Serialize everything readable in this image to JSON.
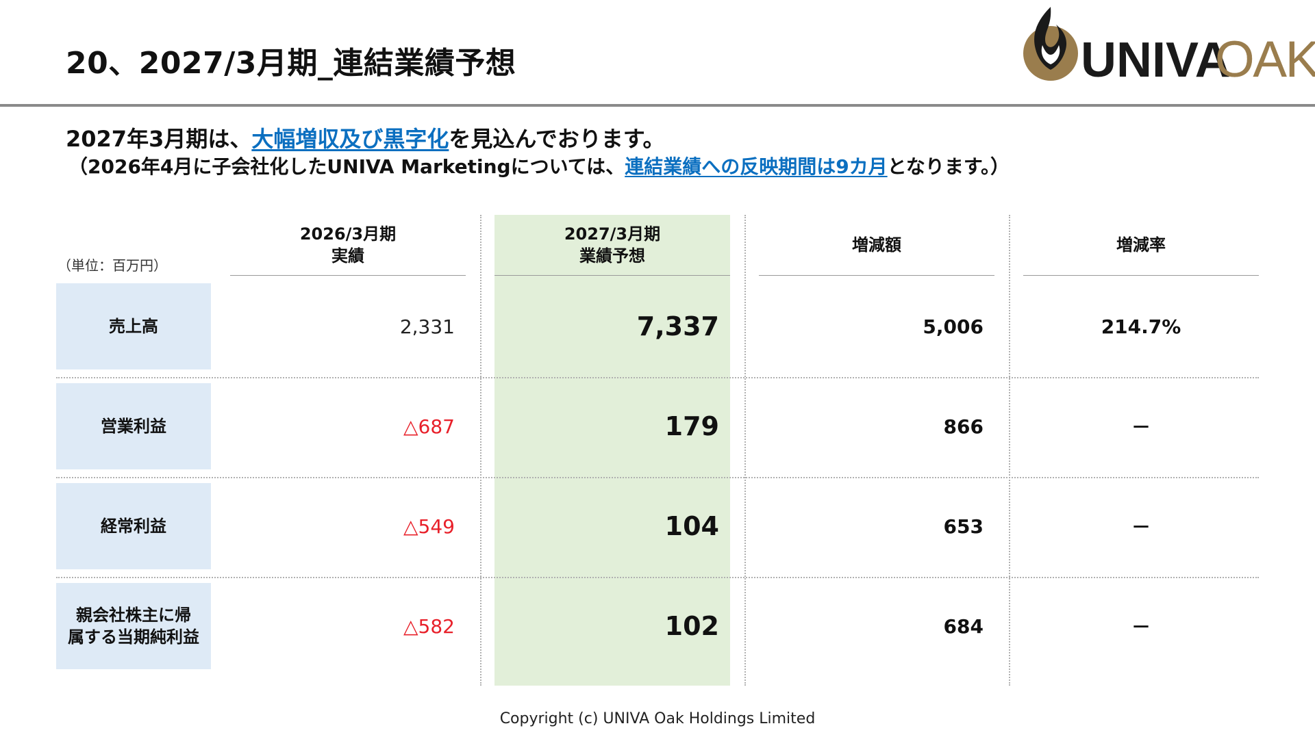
{
  "title": "20、2027/3月期_連結業績予想",
  "logo": {
    "text_left": "UNIVA",
    "text_right": "OAK",
    "mark_color": "#9a7d4d"
  },
  "subtitle": {
    "prefix": "2027年3月期は、",
    "highlight": "大幅増収及び黒字化",
    "suffix": "を見込んでおります。"
  },
  "note": {
    "prefix": "（2026年4月に子会社化したUNIVA Marketingについては、",
    "highlight": "連結業績への反映期間は9カ月",
    "suffix": "となります。）"
  },
  "colors": {
    "accent_link": "#0b6fc0",
    "negative": "#e8202a",
    "forecast_bg": "#e2efd9",
    "label_bg": "#deeaf6"
  },
  "table": {
    "unit": "（単位：百万円）",
    "columns": [
      {
        "line1": "2026/3月期",
        "line2": "実績"
      },
      {
        "line1": "2027/3月期",
        "line2": "業績予想"
      },
      {
        "line1": "増減額",
        "line2": ""
      },
      {
        "line1": "増減率",
        "line2": ""
      }
    ],
    "rows": [
      {
        "label1": "売上高",
        "label2": "",
        "actual": "2,331",
        "forecast": "7,337",
        "diff": "5,006",
        "rate": "214.7%"
      },
      {
        "label1": "営業利益",
        "label2": "",
        "actual": "△687",
        "forecast": "179",
        "diff": "866",
        "rate": "－"
      },
      {
        "label1": "経常利益",
        "label2": "",
        "actual": "△549",
        "forecast": "104",
        "diff": "653",
        "rate": "－"
      },
      {
        "label1": "親会社株主に帰",
        "label2": "属する当期純利益",
        "actual": "△582",
        "forecast": "102",
        "diff": "684",
        "rate": "－"
      }
    ]
  },
  "footer": "Copyright (c) UNIVA Oak Holdings Limited"
}
